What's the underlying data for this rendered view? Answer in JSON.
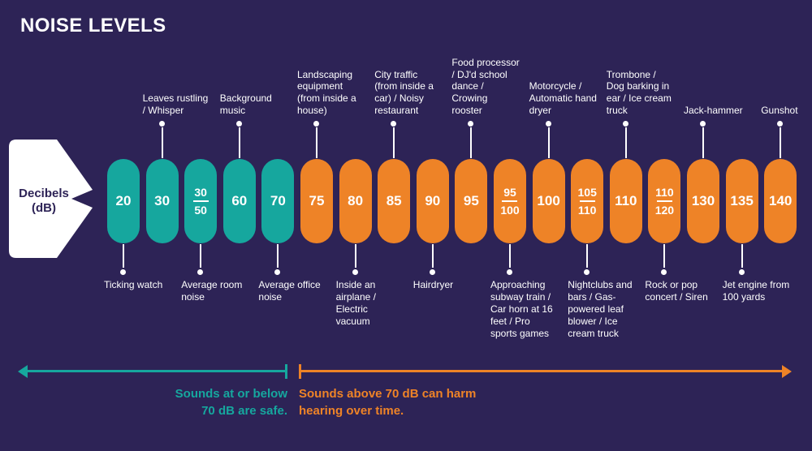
{
  "title": "NOISE LEVELS",
  "colors": {
    "background": "#2D2356",
    "teal": "#16A79E",
    "orange": "#EE8327",
    "white": "#FFFFFF"
  },
  "speaker": {
    "line1": "Decibels",
    "line2": "(dB)"
  },
  "pills": [
    {
      "value": "20",
      "zone": "safe",
      "label_position": "below",
      "label": "Ticking watch"
    },
    {
      "value": "30",
      "zone": "safe",
      "label_position": "above",
      "label": "Leaves rustling / Whisper"
    },
    {
      "value": "30",
      "value2": "50",
      "zone": "safe",
      "label_position": "below",
      "label": "Average room noise"
    },
    {
      "value": "60",
      "zone": "safe",
      "label_position": "above",
      "label": "Background music"
    },
    {
      "value": "70",
      "zone": "safe",
      "label_position": "below",
      "label": "Average office noise"
    },
    {
      "value": "75",
      "zone": "loud",
      "label_position": "above",
      "label": "Landscaping equipment (from inside a house)"
    },
    {
      "value": "80",
      "zone": "loud",
      "label_position": "below",
      "label": "Inside an airplane / Electric vacuum"
    },
    {
      "value": "85",
      "zone": "loud",
      "label_position": "above",
      "label": "City traffic (from inside a car) / Noisy restaurant"
    },
    {
      "value": "90",
      "zone": "loud",
      "label_position": "below",
      "label": "Hairdryer"
    },
    {
      "value": "95",
      "zone": "loud",
      "label_position": "above",
      "label": "Food processor / DJ'd school dance / Crowing rooster"
    },
    {
      "value": "95",
      "value2": "100",
      "zone": "loud",
      "label_position": "below",
      "label": "Approaching subway train / Car horn at 16 feet / Pro sports games"
    },
    {
      "value": "100",
      "zone": "loud",
      "label_position": "above",
      "label": "Motorcycle / Automatic hand dryer"
    },
    {
      "value": "105",
      "value2": "110",
      "zone": "loud",
      "label_position": "below",
      "label": "Nightclubs and bars / Gas-powered leaf blower / Ice cream truck"
    },
    {
      "value": "110",
      "zone": "loud",
      "label_position": "above",
      "label": "Trombone / Dog barking in ear / Ice cream truck"
    },
    {
      "value": "110",
      "value2": "120",
      "zone": "loud",
      "label_position": "below",
      "label": "Rock or pop concert / Siren"
    },
    {
      "value": "130",
      "zone": "loud",
      "label_position": "above",
      "label": "Jack-hammer"
    },
    {
      "value": "135",
      "zone": "loud",
      "label_position": "below",
      "label": "Jet engine from 100 yards"
    },
    {
      "value": "140",
      "zone": "loud",
      "label_position": "above",
      "label": "Gunshot"
    }
  ],
  "legend": {
    "safe": {
      "line1": "Sounds at or below",
      "line2": "70 dB are safe."
    },
    "harm": {
      "line1": "Sounds above 70 dB can harm",
      "line2": "hearing over time."
    }
  }
}
